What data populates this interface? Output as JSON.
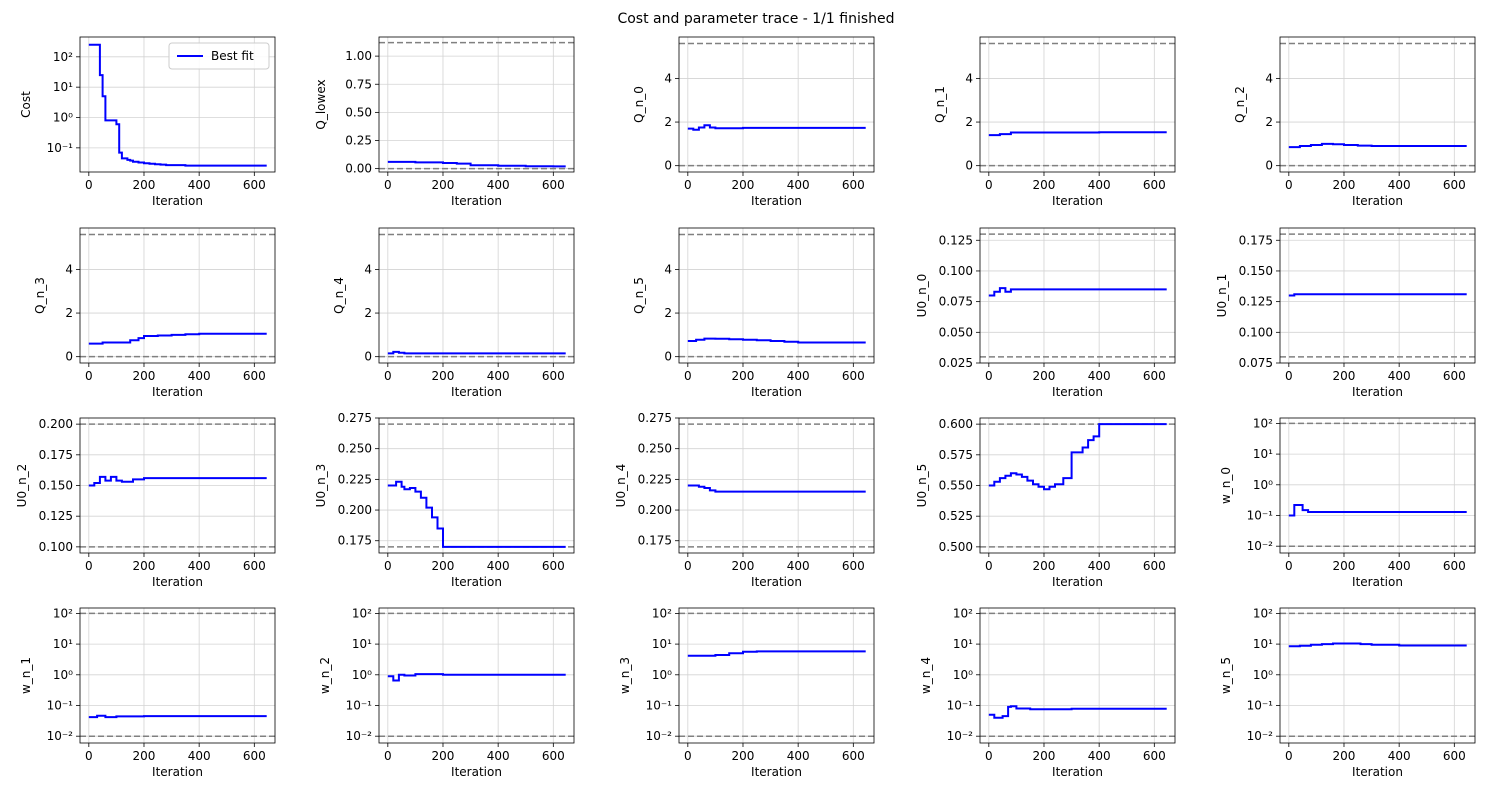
{
  "figure": {
    "title": "Cost and parameter trace - 1/1 finished"
  },
  "colors": {
    "series": "#0000ff",
    "bound": "#808080",
    "grid": "#d3d3d3",
    "axis": "#000000"
  },
  "chart_data": [
    {
      "type": "line",
      "ylabel": "Cost",
      "xlabel": "Iteration",
      "yscale": "log",
      "xlim": [
        -32,
        675
      ],
      "ylim": [
        0.016,
        450
      ],
      "legend": {
        "label": "Best fit",
        "position": "top-right"
      },
      "xticks": [
        0,
        200,
        400,
        600
      ],
      "yticks": [
        {
          "v": 0.1,
          "label": "10⁻¹"
        },
        {
          "v": 1,
          "label": "10⁰"
        },
        {
          "v": 10,
          "label": "10¹"
        },
        {
          "v": 100,
          "label": "10²"
        }
      ],
      "step": true,
      "bounds": [],
      "x": [
        0,
        20,
        40,
        50,
        60,
        80,
        100,
        110,
        120,
        140,
        150,
        160,
        180,
        200,
        220,
        240,
        260,
        280,
        300,
        350,
        400,
        450,
        500,
        550,
        600,
        645
      ],
      "y": [
        250,
        250,
        25,
        5,
        0.8,
        0.8,
        0.6,
        0.07,
        0.045,
        0.04,
        0.038,
        0.035,
        0.033,
        0.031,
        0.03,
        0.029,
        0.028,
        0.027,
        0.027,
        0.026,
        0.026,
        0.026,
        0.026,
        0.026,
        0.026,
        0.026
      ]
    },
    {
      "type": "line",
      "ylabel": "Q_lowex",
      "xlabel": "Iteration",
      "yscale": "linear",
      "xlim": [
        -32,
        675
      ],
      "ylim": [
        -0.03,
        1.17
      ],
      "xticks": [
        0,
        200,
        400,
        600
      ],
      "yticks": [
        0,
        0.25,
        0.5,
        0.75,
        1.0
      ],
      "yticklabels": [
        "0.00",
        "0.25",
        "0.50",
        "0.75",
        "1.00"
      ],
      "step": true,
      "bounds": [
        0,
        1.12
      ],
      "x": [
        0,
        100,
        200,
        250,
        300,
        400,
        500,
        600,
        645
      ],
      "y": [
        0.06,
        0.055,
        0.05,
        0.045,
        0.03,
        0.025,
        0.022,
        0.02,
        0.02
      ]
    },
    {
      "type": "line",
      "ylabel": "Q_n_0",
      "xlabel": "Iteration",
      "yscale": "linear",
      "xlim": [
        -32,
        675
      ],
      "ylim": [
        -0.29,
        5.9
      ],
      "xticks": [
        0,
        200,
        400,
        600
      ],
      "yticks": [
        0,
        2,
        4
      ],
      "step": true,
      "bounds": [
        0,
        5.6
      ],
      "x": [
        0,
        20,
        40,
        60,
        80,
        100,
        200,
        400,
        645
      ],
      "y": [
        1.7,
        1.65,
        1.75,
        1.85,
        1.75,
        1.72,
        1.73,
        1.73,
        1.73
      ]
    },
    {
      "type": "line",
      "ylabel": "Q_n_1",
      "xlabel": "Iteration",
      "yscale": "linear",
      "xlim": [
        -32,
        675
      ],
      "ylim": [
        -0.29,
        5.9
      ],
      "xticks": [
        0,
        200,
        400,
        600
      ],
      "yticks": [
        0,
        2,
        4
      ],
      "step": true,
      "bounds": [
        0,
        5.6
      ],
      "x": [
        0,
        40,
        80,
        100,
        200,
        400,
        645
      ],
      "y": [
        1.4,
        1.45,
        1.52,
        1.52,
        1.52,
        1.53,
        1.53
      ]
    },
    {
      "type": "line",
      "ylabel": "Q_n_2",
      "xlabel": "Iteration",
      "yscale": "linear",
      "xlim": [
        -32,
        675
      ],
      "ylim": [
        -0.29,
        5.9
      ],
      "xticks": [
        0,
        200,
        400,
        600
      ],
      "yticks": [
        0,
        2,
        4
      ],
      "step": true,
      "bounds": [
        0,
        5.6
      ],
      "x": [
        0,
        40,
        80,
        120,
        160,
        200,
        250,
        300,
        400,
        645
      ],
      "y": [
        0.85,
        0.9,
        0.95,
        1.0,
        0.98,
        0.95,
        0.92,
        0.9,
        0.9,
        0.9
      ]
    },
    {
      "type": "line",
      "ylabel": "Q_n_3",
      "xlabel": "Iteration",
      "yscale": "linear",
      "xlim": [
        -32,
        675
      ],
      "ylim": [
        -0.29,
        5.9
      ],
      "xticks": [
        0,
        200,
        400,
        600
      ],
      "yticks": [
        0,
        2,
        4
      ],
      "step": true,
      "bounds": [
        0,
        5.6
      ],
      "x": [
        0,
        50,
        100,
        150,
        180,
        200,
        250,
        300,
        350,
        400,
        645
      ],
      "y": [
        0.6,
        0.65,
        0.65,
        0.75,
        0.85,
        0.95,
        0.97,
        1.0,
        1.03,
        1.05,
        1.05
      ]
    },
    {
      "type": "line",
      "ylabel": "Q_n_4",
      "xlabel": "Iteration",
      "yscale": "linear",
      "xlim": [
        -32,
        675
      ],
      "ylim": [
        -0.29,
        5.9
      ],
      "xticks": [
        0,
        200,
        400,
        600
      ],
      "yticks": [
        0,
        2,
        4
      ],
      "step": true,
      "bounds": [
        0,
        5.6
      ],
      "x": [
        0,
        20,
        40,
        60,
        100,
        200,
        400,
        645
      ],
      "y": [
        0.15,
        0.22,
        0.18,
        0.15,
        0.15,
        0.15,
        0.15,
        0.15
      ]
    },
    {
      "type": "line",
      "ylabel": "Q_n_5",
      "xlabel": "Iteration",
      "yscale": "linear",
      "xlim": [
        -32,
        675
      ],
      "ylim": [
        -0.29,
        5.9
      ],
      "xticks": [
        0,
        200,
        400,
        600
      ],
      "yticks": [
        0,
        2,
        4
      ],
      "step": true,
      "bounds": [
        0,
        5.6
      ],
      "x": [
        0,
        30,
        60,
        100,
        150,
        200,
        250,
        300,
        350,
        400,
        645
      ],
      "y": [
        0.72,
        0.78,
        0.83,
        0.82,
        0.8,
        0.78,
        0.75,
        0.72,
        0.68,
        0.65,
        0.65
      ]
    },
    {
      "type": "line",
      "ylabel": "U0_n_0",
      "xlabel": "Iteration",
      "yscale": "linear",
      "xlim": [
        -32,
        675
      ],
      "ylim": [
        0.025,
        0.135
      ],
      "xticks": [
        0,
        200,
        400,
        600
      ],
      "yticks": [
        0.025,
        0.05,
        0.075,
        0.1,
        0.125
      ],
      "yticklabels": [
        "0.025",
        "0.050",
        "0.075",
        "0.100",
        "0.125"
      ],
      "step": true,
      "bounds": [
        0.03,
        0.13
      ],
      "x": [
        0,
        20,
        40,
        60,
        80,
        200,
        645
      ],
      "y": [
        0.08,
        0.083,
        0.086,
        0.083,
        0.085,
        0.085,
        0.085
      ]
    },
    {
      "type": "line",
      "ylabel": "U0_n_1",
      "xlabel": "Iteration",
      "yscale": "linear",
      "xlim": [
        -32,
        675
      ],
      "ylim": [
        0.075,
        0.185
      ],
      "xticks": [
        0,
        200,
        400,
        600
      ],
      "yticks": [
        0.075,
        0.1,
        0.125,
        0.15,
        0.175
      ],
      "yticklabels": [
        "0.075",
        "0.100",
        "0.125",
        "0.150",
        "0.175"
      ],
      "step": true,
      "bounds": [
        0.08,
        0.18
      ],
      "x": [
        0,
        20,
        200,
        645
      ],
      "y": [
        0.13,
        0.131,
        0.131,
        0.131
      ]
    },
    {
      "type": "line",
      "ylabel": "U0_n_2",
      "xlabel": "Iteration",
      "yscale": "linear",
      "xlim": [
        -32,
        675
      ],
      "ylim": [
        0.095,
        0.205
      ],
      "xticks": [
        0,
        200,
        400,
        600
      ],
      "yticks": [
        0.1,
        0.125,
        0.15,
        0.175,
        0.2
      ],
      "yticklabels": [
        "0.100",
        "0.125",
        "0.150",
        "0.175",
        "0.200"
      ],
      "step": true,
      "bounds": [
        0.1,
        0.2
      ],
      "x": [
        0,
        20,
        40,
        60,
        80,
        100,
        120,
        160,
        200,
        300,
        645
      ],
      "y": [
        0.15,
        0.152,
        0.157,
        0.154,
        0.157,
        0.154,
        0.153,
        0.155,
        0.156,
        0.156,
        0.156
      ]
    },
    {
      "type": "line",
      "ylabel": "U0_n_3",
      "xlabel": "Iteration",
      "yscale": "linear",
      "xlim": [
        -32,
        675
      ],
      "ylim": [
        0.165,
        0.275
      ],
      "xticks": [
        0,
        200,
        400,
        600
      ],
      "yticks": [
        0.175,
        0.2,
        0.225,
        0.25,
        0.275
      ],
      "yticklabels": [
        "0.175",
        "0.200",
        "0.225",
        "0.250",
        "0.275"
      ],
      "step": true,
      "bounds": [
        0.17,
        0.27
      ],
      "x": [
        0,
        30,
        50,
        60,
        80,
        100,
        120,
        140,
        160,
        180,
        200,
        300,
        645
      ],
      "y": [
        0.22,
        0.223,
        0.219,
        0.217,
        0.218,
        0.215,
        0.21,
        0.202,
        0.194,
        0.185,
        0.17,
        0.17,
        0.17
      ]
    },
    {
      "type": "line",
      "ylabel": "U0_n_4",
      "xlabel": "Iteration",
      "yscale": "linear",
      "xlim": [
        -32,
        675
      ],
      "ylim": [
        0.165,
        0.275
      ],
      "xticks": [
        0,
        200,
        400,
        600
      ],
      "yticks": [
        0.175,
        0.2,
        0.225,
        0.25,
        0.275
      ],
      "yticklabels": [
        "0.175",
        "0.200",
        "0.225",
        "0.250",
        "0.275"
      ],
      "step": true,
      "bounds": [
        0.17,
        0.27
      ],
      "x": [
        0,
        40,
        60,
        80,
        100,
        200,
        645
      ],
      "y": [
        0.22,
        0.219,
        0.218,
        0.216,
        0.215,
        0.215,
        0.215
      ]
    },
    {
      "type": "line",
      "ylabel": "U0_n_5",
      "xlabel": "Iteration",
      "yscale": "linear",
      "xlim": [
        -32,
        675
      ],
      "ylim": [
        0.495,
        0.605
      ],
      "xticks": [
        0,
        200,
        400,
        600
      ],
      "yticks": [
        0.5,
        0.525,
        0.55,
        0.575,
        0.6
      ],
      "yticklabels": [
        "0.500",
        "0.525",
        "0.550",
        "0.575",
        "0.600"
      ],
      "step": true,
      "bounds": [
        0.5,
        0.6
      ],
      "x": [
        0,
        20,
        40,
        60,
        80,
        100,
        120,
        140,
        160,
        180,
        200,
        220,
        240,
        270,
        300,
        340,
        360,
        380,
        400,
        645
      ],
      "y": [
        0.55,
        0.553,
        0.556,
        0.558,
        0.56,
        0.559,
        0.557,
        0.554,
        0.551,
        0.549,
        0.547,
        0.549,
        0.551,
        0.556,
        0.577,
        0.581,
        0.587,
        0.59,
        0.6,
        0.6
      ]
    },
    {
      "type": "line",
      "ylabel": "w_n_0",
      "xlabel": "Iteration",
      "yscale": "log",
      "xlim": [
        -32,
        675
      ],
      "ylim": [
        0.006,
        150
      ],
      "xticks": [
        0,
        200,
        400,
        600
      ],
      "yticks": [
        {
          "v": 0.01,
          "label": "10⁻²"
        },
        {
          "v": 0.1,
          "label": "10⁻¹"
        },
        {
          "v": 1,
          "label": "10⁰"
        },
        {
          "v": 10,
          "label": "10¹"
        },
        {
          "v": 100,
          "label": "10²"
        }
      ],
      "step": true,
      "bounds": [
        0.01,
        100
      ],
      "x": [
        0,
        20,
        50,
        70,
        100,
        200,
        645
      ],
      "y": [
        0.1,
        0.22,
        0.15,
        0.13,
        0.13,
        0.13,
        0.13
      ]
    },
    {
      "type": "line",
      "ylabel": "w_n_1",
      "xlabel": "Iteration",
      "yscale": "log",
      "xlim": [
        -32,
        675
      ],
      "ylim": [
        0.006,
        150
      ],
      "xticks": [
        0,
        200,
        400,
        600
      ],
      "yticks": [
        {
          "v": 0.01,
          "label": "10⁻²"
        },
        {
          "v": 0.1,
          "label": "10⁻¹"
        },
        {
          "v": 1,
          "label": "10⁰"
        },
        {
          "v": 10,
          "label": "10¹"
        },
        {
          "v": 100,
          "label": "10²"
        }
      ],
      "step": true,
      "bounds": [
        0.01,
        100
      ],
      "x": [
        0,
        30,
        60,
        100,
        200,
        645
      ],
      "y": [
        0.042,
        0.046,
        0.042,
        0.044,
        0.045,
        0.045
      ]
    },
    {
      "type": "line",
      "ylabel": "w_n_2",
      "xlabel": "Iteration",
      "yscale": "log",
      "xlim": [
        -32,
        675
      ],
      "ylim": [
        0.006,
        150
      ],
      "xticks": [
        0,
        200,
        400,
        600
      ],
      "yticks": [
        {
          "v": 0.01,
          "label": "10⁻²"
        },
        {
          "v": 0.1,
          "label": "10⁻¹"
        },
        {
          "v": 1,
          "label": "10⁰"
        },
        {
          "v": 10,
          "label": "10¹"
        },
        {
          "v": 100,
          "label": "10²"
        }
      ],
      "step": true,
      "bounds": [
        0.01,
        100
      ],
      "x": [
        0,
        20,
        40,
        60,
        100,
        150,
        200,
        645
      ],
      "y": [
        0.9,
        0.65,
        1.0,
        0.95,
        1.05,
        1.05,
        1.0,
        1.0
      ]
    },
    {
      "type": "line",
      "ylabel": "w_n_3",
      "xlabel": "Iteration",
      "yscale": "log",
      "xlim": [
        -32,
        675
      ],
      "ylim": [
        0.006,
        150
      ],
      "xticks": [
        0,
        200,
        400,
        600
      ],
      "yticks": [
        {
          "v": 0.01,
          "label": "10⁻²"
        },
        {
          "v": 0.1,
          "label": "10⁻¹"
        },
        {
          "v": 1,
          "label": "10⁰"
        },
        {
          "v": 10,
          "label": "10¹"
        },
        {
          "v": 100,
          "label": "10²"
        }
      ],
      "step": true,
      "bounds": [
        0.01,
        100
      ],
      "x": [
        0,
        100,
        150,
        200,
        250,
        300,
        645
      ],
      "y": [
        4.2,
        4.4,
        5.0,
        5.6,
        5.8,
        5.8,
        5.8
      ]
    },
    {
      "type": "line",
      "ylabel": "w_n_4",
      "xlabel": "Iteration",
      "yscale": "log",
      "xlim": [
        -32,
        675
      ],
      "ylim": [
        0.006,
        150
      ],
      "xticks": [
        0,
        200,
        400,
        600
      ],
      "yticks": [
        {
          "v": 0.01,
          "label": "10⁻²"
        },
        {
          "v": 0.1,
          "label": "10⁻¹"
        },
        {
          "v": 1,
          "label": "10⁰"
        },
        {
          "v": 10,
          "label": "10¹"
        },
        {
          "v": 100,
          "label": "10²"
        }
      ],
      "step": true,
      "bounds": [
        0.01,
        100
      ],
      "x": [
        0,
        20,
        50,
        70,
        80,
        100,
        150,
        200,
        300,
        645
      ],
      "y": [
        0.05,
        0.04,
        0.045,
        0.09,
        0.095,
        0.08,
        0.075,
        0.075,
        0.078,
        0.078
      ]
    },
    {
      "type": "line",
      "ylabel": "w_n_5",
      "xlabel": "Iteration",
      "yscale": "log",
      "xlim": [
        -32,
        675
      ],
      "ylim": [
        0.006,
        150
      ],
      "xticks": [
        0,
        200,
        400,
        600
      ],
      "yticks": [
        {
          "v": 0.01,
          "label": "10⁻²"
        },
        {
          "v": 0.1,
          "label": "10⁻¹"
        },
        {
          "v": 1,
          "label": "10⁰"
        },
        {
          "v": 10,
          "label": "10¹"
        },
        {
          "v": 100,
          "label": "10²"
        }
      ],
      "step": true,
      "bounds": [
        0.01,
        100
      ],
      "x": [
        0,
        40,
        80,
        120,
        160,
        200,
        260,
        300,
        400,
        645
      ],
      "y": [
        8.5,
        8.8,
        9.5,
        10.0,
        10.5,
        10.5,
        10.0,
        9.5,
        9.0,
        9.0
      ]
    }
  ]
}
